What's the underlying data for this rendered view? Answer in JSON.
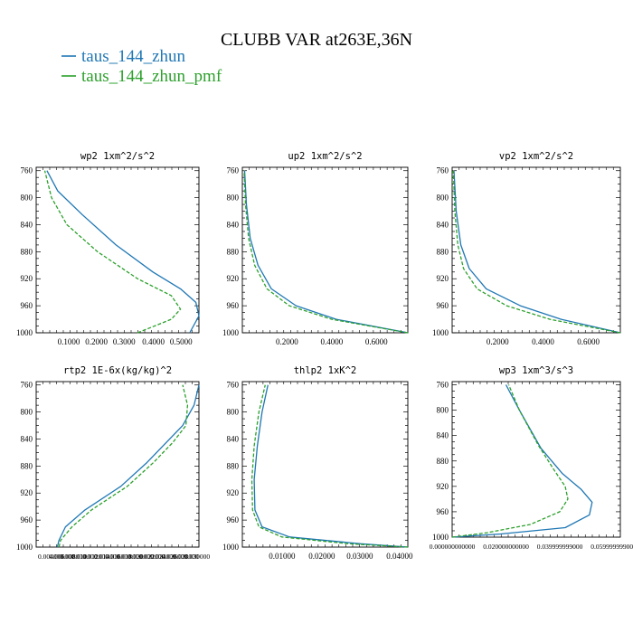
{
  "title": "CLUBB VAR at263E,36N",
  "legend": [
    {
      "label": "taus_144_zhun",
      "color": "#1f77b4",
      "dash": "solid"
    },
    {
      "label": "taus_144_zhun_pmf",
      "color": "#2ca02c",
      "dash": "dashed"
    }
  ],
  "chart_data": [
    {
      "type": "line",
      "title": "wp2  1xm^2/s^2",
      "ylim": [
        1000,
        755
      ],
      "xlim": [
        0.0,
        0.53
      ],
      "yticks": [
        "760",
        "800",
        "840",
        "880",
        "920",
        "960",
        "1000"
      ],
      "xticks": [
        "0.1000",
        "0.2000",
        "0.3000",
        "0.4000",
        "0.5000"
      ],
      "series": [
        {
          "name": "taus_144_zhun",
          "x": [
            0.5,
            0.53,
            0.52,
            0.47,
            0.38,
            0.26,
            0.15,
            0.07,
            0.035
          ],
          "y": [
            1000,
            975,
            955,
            935,
            910,
            870,
            825,
            790,
            760
          ]
        },
        {
          "name": "taus_144_zhun_pmf",
          "x": [
            0.33,
            0.44,
            0.47,
            0.44,
            0.33,
            0.2,
            0.1,
            0.05,
            0.028
          ],
          "y": [
            1000,
            980,
            965,
            945,
            920,
            880,
            840,
            800,
            760
          ]
        }
      ]
    },
    {
      "type": "line",
      "title": "up2  1xm^2/s^2",
      "ylim": [
        1000,
        755
      ],
      "xlim": [
        0.0,
        0.74
      ],
      "yticks": [
        "760",
        "800",
        "840",
        "880",
        "920",
        "960",
        "1000"
      ],
      "xticks": [
        "0.2000",
        "0.4000",
        "0.6000"
      ],
      "series": [
        {
          "name": "taus_144_zhun",
          "x": [
            0.74,
            0.42,
            0.24,
            0.13,
            0.07,
            0.035,
            0.018,
            0.01
          ],
          "y": [
            1000,
            980,
            960,
            935,
            900,
            860,
            810,
            760
          ]
        },
        {
          "name": "taus_144_zhun_pmf",
          "x": [
            0.74,
            0.4,
            0.21,
            0.11,
            0.055,
            0.028,
            0.014,
            0.008
          ],
          "y": [
            1000,
            980,
            960,
            935,
            900,
            860,
            810,
            760
          ]
        }
      ]
    },
    {
      "type": "line",
      "title": "vp2  1xm^2/s^2",
      "ylim": [
        1000,
        755
      ],
      "xlim": [
        0.0,
        0.74
      ],
      "yticks": [
        "760",
        "800",
        "840",
        "880",
        "920",
        "960",
        "1000"
      ],
      "xticks": [
        "0.2000",
        "0.4000",
        "0.6000"
      ],
      "series": [
        {
          "name": "taus_144_zhun",
          "x": [
            0.74,
            0.48,
            0.3,
            0.15,
            0.075,
            0.038,
            0.018,
            0.008
          ],
          "y": [
            1000,
            980,
            960,
            935,
            905,
            870,
            820,
            760
          ]
        },
        {
          "name": "taus_144_zhun_pmf",
          "x": [
            0.74,
            0.43,
            0.24,
            0.11,
            0.05,
            0.025,
            0.012,
            0.005
          ],
          "y": [
            1000,
            980,
            960,
            935,
            905,
            870,
            820,
            760
          ]
        }
      ]
    },
    {
      "type": "line",
      "title": "rtp2  1E-6x(kg/kg)^2",
      "ylim": [
        1000,
        755
      ],
      "xlim": [
        0.0,
        100.0
      ],
      "yticks": [
        "760",
        "800",
        "840",
        "880",
        "920",
        "960",
        "1000"
      ],
      "xticks": [
        "0.004000",
        "0.006000",
        "0.008000",
        "0.010000",
        "0.012000",
        "0.014000",
        "0.016000",
        "0.018000",
        "0.020000",
        "0.022000",
        "0.024000",
        "0.026000",
        "0.028000",
        "0.030000"
      ],
      "series": [
        {
          "name": "taus_144_zhun",
          "x": [
            13,
            14,
            18,
            30,
            52,
            68,
            80,
            90,
            97,
            100
          ],
          "y": [
            1000,
            990,
            970,
            945,
            910,
            875,
            845,
            820,
            790,
            760
          ]
        },
        {
          "name": "taus_144_zhun_pmf",
          "x": [
            14,
            15,
            22,
            34,
            56,
            72,
            84,
            92,
            93,
            90
          ],
          "y": [
            1000,
            990,
            970,
            945,
            910,
            875,
            845,
            820,
            790,
            760
          ]
        }
      ]
    },
    {
      "type": "line",
      "title": "thlp2  1xK^2",
      "ylim": [
        1000,
        755
      ],
      "xlim": [
        0.0,
        0.042
      ],
      "yticks": [
        "760",
        "800",
        "840",
        "880",
        "920",
        "960",
        "1000"
      ],
      "xticks": [
        "0.01000",
        "0.02000",
        "0.03000",
        "0.04000"
      ],
      "series": [
        {
          "name": "taus_144_zhun",
          "x": [
            0.042,
            0.03,
            0.012,
            0.005,
            0.0032,
            0.003,
            0.0038,
            0.005,
            0.0065
          ],
          "y": [
            1000,
            995,
            985,
            970,
            945,
            900,
            850,
            800,
            760
          ]
        },
        {
          "name": "taus_144_zhun_pmf",
          "x": [
            0.042,
            0.027,
            0.01,
            0.0042,
            0.0026,
            0.0024,
            0.003,
            0.0042,
            0.0058
          ],
          "y": [
            1000,
            995,
            985,
            970,
            945,
            900,
            850,
            800,
            760
          ]
        }
      ]
    },
    {
      "type": "line",
      "title": "wp3  1xm^3/s^3",
      "ylim": [
        1000,
        755
      ],
      "xlim": [
        0.0,
        0.0625
      ],
      "yticks": [
        "760",
        "800",
        "840",
        "880",
        "920",
        "960",
        "1000"
      ],
      "xticks": [
        "0.000000000000",
        "0.020000000000",
        "0.039999999000",
        "0.059999999000"
      ],
      "series": [
        {
          "name": "taus_144_zhun",
          "x": [
            0.0,
            0.018,
            0.042,
            0.051,
            0.052,
            0.048,
            0.041,
            0.033,
            0.025,
            0.02
          ],
          "y": [
            1000,
            995,
            985,
            965,
            945,
            925,
            900,
            860,
            800,
            760
          ]
        },
        {
          "name": "taus_144_zhun_pmf",
          "x": [
            0.0,
            0.013,
            0.029,
            0.04,
            0.043,
            0.042,
            0.038,
            0.032,
            0.025,
            0.021
          ],
          "y": [
            1000,
            993,
            980,
            960,
            940,
            920,
            895,
            855,
            800,
            760
          ]
        }
      ]
    }
  ]
}
